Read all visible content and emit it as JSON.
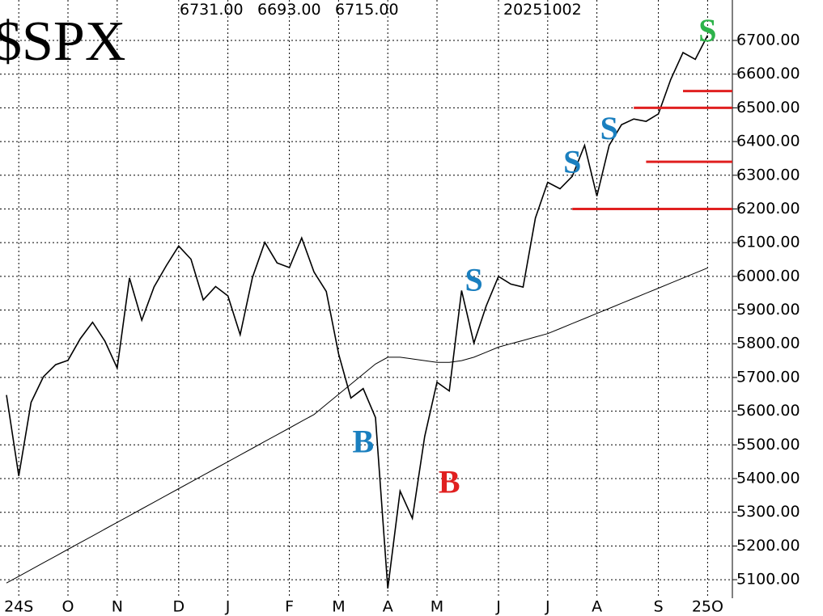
{
  "chart_data": {
    "type": "line",
    "title": "$SPX",
    "header_values": [
      "6731.00",
      "6693.00",
      "6715.00",
      "20251002"
    ],
    "categories": [
      null,
      "24S",
      null,
      null,
      null,
      "O",
      null,
      null,
      null,
      "N",
      null,
      null,
      null,
      null,
      "D",
      null,
      null,
      null,
      "J",
      null,
      null,
      null,
      null,
      "F",
      null,
      null,
      null,
      "M",
      null,
      null,
      null,
      "A",
      null,
      null,
      null,
      "M",
      null,
      null,
      null,
      null,
      "J",
      null,
      null,
      null,
      "J",
      null,
      null,
      null,
      "A",
      null,
      null,
      null,
      null,
      "S",
      null,
      null,
      null,
      "25O"
    ],
    "series": [
      {
        "color": "#000000",
        "values": [
          5648,
          5408,
          5626,
          5702,
          5738,
          5751,
          5815,
          5864,
          5808,
          5728,
          5995,
          5870,
          5969,
          6032,
          6090,
          6051,
          5930,
          5970,
          5942,
          5827,
          5997,
          6101,
          6040,
          6026,
          6114,
          6013,
          5955,
          5770,
          5639,
          5667,
          5581,
          5074,
          5363,
          5282,
          5525,
          5686,
          5660,
          5958,
          5802,
          5912,
          6000,
          5977,
          5968,
          6173,
          6279,
          6260,
          6297,
          6389,
          6238,
          6389,
          6450,
          6467,
          6460,
          6482,
          6584,
          6664,
          6644,
          6715
        ]
      },
      {
        "color": "#000000",
        "values": [
          5090,
          5110,
          5130,
          5150,
          5170,
          5190,
          5210,
          5230,
          5250,
          5270,
          5290,
          5310,
          5330,
          5350,
          5370,
          5390,
          5410,
          5430,
          5450,
          5470,
          5490,
          5510,
          5530,
          5550,
          5570,
          5590,
          5620,
          5650,
          5680,
          5710,
          5740,
          5760,
          5760,
          5755,
          5750,
          5745,
          5745,
          5750,
          5760,
          5775,
          5790,
          5800,
          5810,
          5820,
          5830,
          5845,
          5860,
          5875,
          5890,
          5905,
          5920,
          5935,
          5950,
          5965,
          5980,
          5995,
          6010,
          6025
        ]
      }
    ],
    "ylim": [
      5045,
      6820
    ],
    "yticks": [
      {
        "value": 5100,
        "label": "5100.00"
      },
      {
        "value": 5200,
        "label": "5200.00"
      },
      {
        "value": 5300,
        "label": "5300.00"
      },
      {
        "value": 5400,
        "label": "5400.00"
      },
      {
        "value": 5500,
        "label": "5500.00"
      },
      {
        "value": 5600,
        "label": "5600.00"
      },
      {
        "value": 5700,
        "label": "5700.00"
      },
      {
        "value": 5800,
        "label": "5800.00"
      },
      {
        "value": 5900,
        "label": "5900.00"
      },
      {
        "value": 6000,
        "label": "6000.00"
      },
      {
        "value": 6100,
        "label": "6100.00"
      },
      {
        "value": 6200,
        "label": "6200.00"
      },
      {
        "value": 6300,
        "label": "6300.00"
      },
      {
        "value": 6400,
        "label": "6400.00"
      },
      {
        "value": 6500,
        "label": "6500.00"
      },
      {
        "value": 6600,
        "label": "6600.00"
      },
      {
        "value": 6700,
        "label": "6700.00"
      }
    ],
    "grid": true,
    "annotations": [
      {
        "text": "B",
        "index": 29,
        "value": 5500,
        "color": "#1a7fbf"
      },
      {
        "text": "B",
        "index": 36,
        "value": 5380,
        "color": "#e02020"
      },
      {
        "text": "S",
        "index": 38,
        "value": 5980,
        "color": "#1a7fbf"
      },
      {
        "text": "S",
        "index": 46,
        "value": 6330,
        "color": "#1a7fbf"
      },
      {
        "text": "S",
        "index": 49,
        "value": 6430,
        "color": "#1a7fbf"
      },
      {
        "text": "S",
        "index": 57,
        "value": 6720,
        "color": "#2db34a"
      }
    ],
    "levels": [
      {
        "value": 6550,
        "start": 55,
        "color": "#e02020"
      },
      {
        "value": 6500,
        "start": 51,
        "color": "#e02020"
      },
      {
        "value": 6340,
        "start": 52,
        "color": "#e02020"
      },
      {
        "value": 6200,
        "start": 46,
        "color": "#e02020"
      }
    ]
  }
}
